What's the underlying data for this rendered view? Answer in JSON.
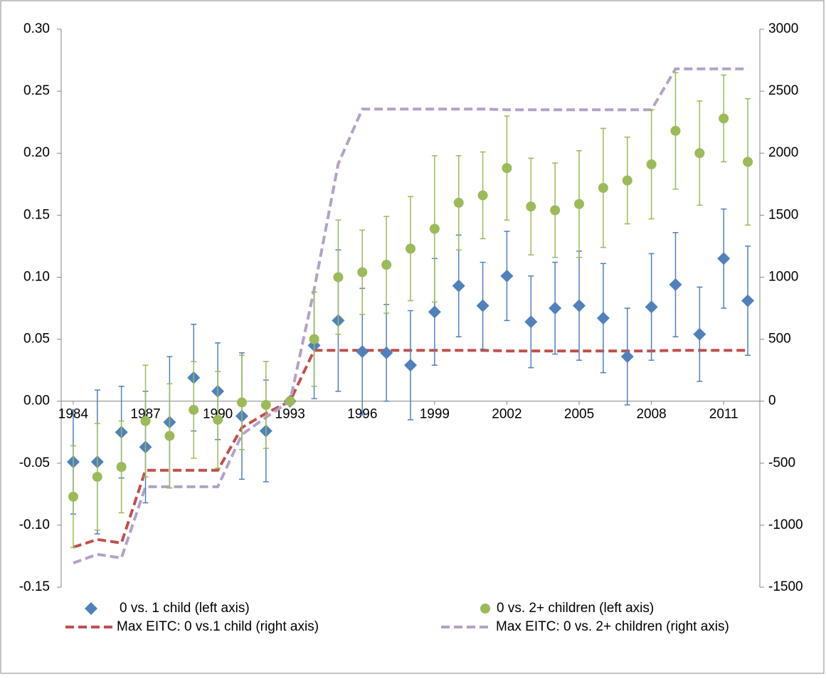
{
  "chart_data": {
    "type": "errorbar-line",
    "categories": [
      "1984",
      null,
      null,
      "1987",
      null,
      null,
      "1990",
      null,
      null,
      "1993",
      null,
      null,
      "1996",
      null,
      null,
      "1999",
      null,
      null,
      "2002",
      null,
      null,
      "2005",
      null,
      null,
      "2008",
      null,
      null,
      "2011",
      null
    ],
    "ylim": [
      -0.15,
      0.3
    ],
    "yticks": [
      {
        "value": -0.15,
        "label": "-0.15"
      },
      {
        "value": -0.1,
        "label": "-0.10"
      },
      {
        "value": -0.05,
        "label": "-0.05"
      },
      {
        "value": 0,
        "label": "0.00"
      },
      {
        "value": 0.05,
        "label": "0.05"
      },
      {
        "value": 0.1,
        "label": "0.10"
      },
      {
        "value": 0.15,
        "label": "0.15"
      },
      {
        "value": 0.2,
        "label": "0.20"
      },
      {
        "value": 0.25,
        "label": "0.25"
      },
      {
        "value": 0.3,
        "label": "0.30"
      }
    ],
    "y2lim": [
      -1500,
      3000
    ],
    "y2ticks": [
      -1500,
      -1000,
      -500,
      0,
      500,
      1000,
      1500,
      2000,
      2500,
      3000
    ],
    "grid": false,
    "legend": "bottom",
    "series": [
      {
        "name": "0 vs. 1 child (left axis)",
        "marker": "diamond",
        "color": "#4f81bd",
        "values": [
          -0.049,
          -0.049,
          -0.025,
          -0.037,
          -0.017,
          0.019,
          0.008,
          -0.012,
          -0.024,
          0.0,
          0.045,
          0.065,
          0.04,
          0.039,
          0.029,
          0.072,
          0.093,
          0.077,
          0.101,
          0.064,
          0.075,
          0.077,
          0.067,
          0.036,
          0.076,
          0.094,
          0.054,
          0.115,
          0.081
        ],
        "errors": [
          0.042,
          0.058,
          0.037,
          0.045,
          0.053,
          0.043,
          0.039,
          0.051,
          0.041,
          0.002,
          0.043,
          0.057,
          0.051,
          0.039,
          0.044,
          0.043,
          0.041,
          0.035,
          0.036,
          0.037,
          0.037,
          0.044,
          0.044,
          0.039,
          0.043,
          0.042,
          0.038,
          0.04,
          0.044
        ]
      },
      {
        "name": "0 vs. 2+ children (left axis)",
        "marker": "circle",
        "color": "#9bbb59",
        "values": [
          -0.077,
          -0.061,
          -0.053,
          -0.016,
          -0.028,
          -0.007,
          -0.015,
          -0.001,
          -0.003,
          0.0,
          0.05,
          0.1,
          0.104,
          0.11,
          0.123,
          0.139,
          0.16,
          0.166,
          0.188,
          0.157,
          0.154,
          0.159,
          0.172,
          0.178,
          0.191,
          0.218,
          0.2,
          0.228,
          0.193
        ],
        "errors": [
          0.041,
          0.043,
          0.037,
          0.045,
          0.042,
          0.039,
          0.039,
          0.038,
          0.035,
          0.002,
          0.038,
          0.046,
          0.034,
          0.039,
          0.042,
          0.059,
          0.038,
          0.035,
          0.042,
          0.039,
          0.038,
          0.043,
          0.048,
          0.035,
          0.044,
          0.047,
          0.042,
          0.035,
          0.051
        ]
      },
      {
        "name": "Max EITC: 0 vs.1 child (right axis)",
        "marker": "dashed-line",
        "axis": "y2",
        "color": "#c0504d",
        "values": [
          -1178,
          -1115,
          -1144,
          -557,
          -557,
          -557,
          -557,
          -213,
          -98,
          0,
          410,
          410,
          410,
          410,
          410,
          410,
          410,
          410,
          405,
          405,
          405,
          405,
          405,
          405,
          405,
          410,
          410,
          410,
          410
        ]
      },
      {
        "name": "Max EITC: 0 vs. 2+ children (right axis)",
        "marker": "dashed-line",
        "axis": "y2",
        "color": "#b3a2c7",
        "values": [
          -1305,
          -1235,
          -1265,
          -690,
          -690,
          -690,
          -690,
          -270,
          -130,
          0,
          900,
          1914,
          2356,
          2356,
          2356,
          2356,
          2356,
          2356,
          2350,
          2350,
          2350,
          2350,
          2350,
          2350,
          2350,
          2680,
          2680,
          2680,
          2680
        ]
      }
    ]
  }
}
